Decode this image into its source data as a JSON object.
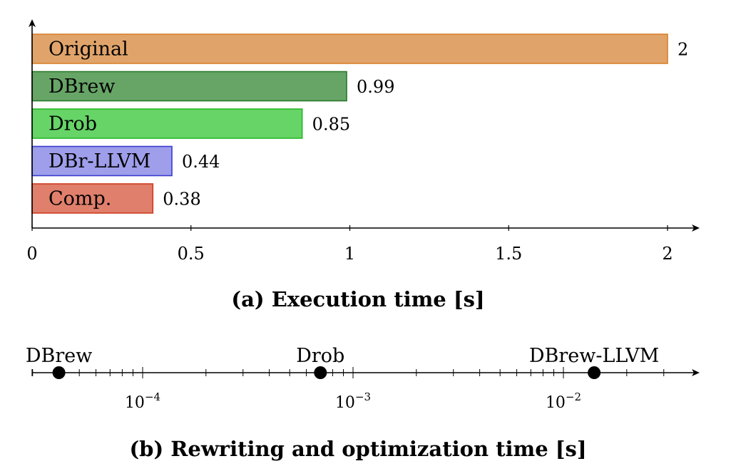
{
  "chart_data": [
    {
      "type": "bar",
      "orientation": "horizontal",
      "title": "(a) Execution time [s]",
      "categories": [
        "Original",
        "DBrew",
        "Drob",
        "DBr-LLVM",
        "Comp."
      ],
      "values": [
        2,
        0.99,
        0.85,
        0.44,
        0.38
      ],
      "value_labels": [
        "2",
        "0.99",
        "0.85",
        "0.44",
        "0.38"
      ],
      "colors": [
        {
          "fill": "#e0a46b",
          "stroke": "#d9822b"
        },
        {
          "fill": "#67a567",
          "stroke": "#2b7a2b"
        },
        {
          "fill": "#66d466",
          "stroke": "#28b828"
        },
        {
          "fill": "#9e9eea",
          "stroke": "#3a3ad0"
        },
        {
          "fill": "#e07f6b",
          "stroke": "#cc3c22"
        }
      ],
      "xlim": [
        0,
        2
      ],
      "xticks": [
        0,
        0.5,
        1,
        1.5,
        2
      ],
      "xtick_labels": [
        "0",
        "0.5",
        "1",
        "1.5",
        "2"
      ],
      "grid": false
    },
    {
      "type": "scatter",
      "title": "(b) Rewriting and optimization time [s]",
      "xscale": "log",
      "xlim": [
        3e-05,
        0.03
      ],
      "xtick_labels": [
        "10^-4",
        "10^-3",
        "10^-2"
      ],
      "points": [
        {
          "label": "DBrew",
          "x": 4e-05
        },
        {
          "label": "Drob",
          "x": 0.0007
        },
        {
          "label": "DBrew-LLVM",
          "x": 0.014
        }
      ]
    }
  ]
}
